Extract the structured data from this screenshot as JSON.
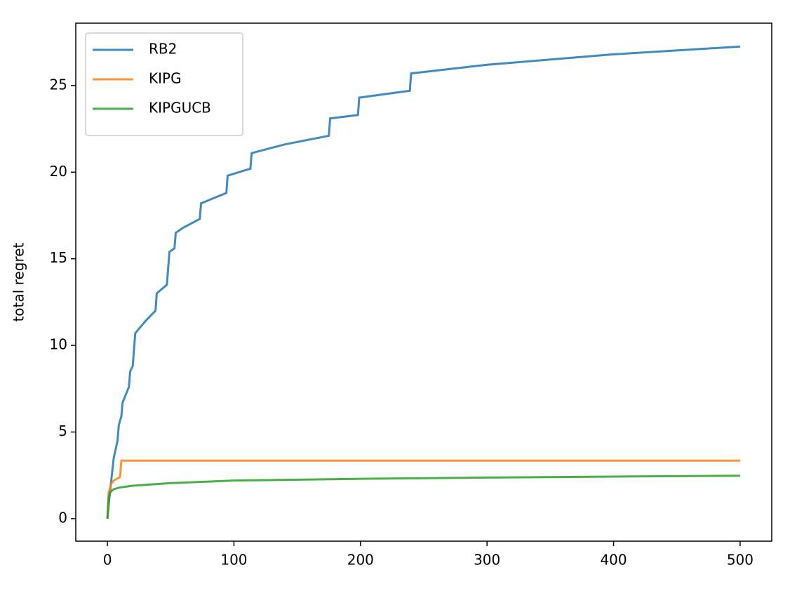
{
  "chart_data": {
    "type": "line",
    "y_label": "total regret",
    "xlim": [
      -25,
      525
    ],
    "ylim": [
      -1.3,
      28.6
    ],
    "xticks": [
      0,
      100,
      200,
      300,
      400,
      500
    ],
    "yticks": [
      0,
      5,
      10,
      15,
      20,
      25
    ],
    "legend": "upper left",
    "series": [
      {
        "name": "RB2",
        "color": "#1f77b4",
        "x": [
          0,
          2,
          5,
          8,
          9,
          11,
          12,
          17,
          18,
          20,
          22,
          30,
          38,
          39,
          47,
          49,
          53,
          54,
          60,
          73,
          74,
          94,
          95,
          113,
          114,
          140,
          175,
          176,
          198,
          199,
          239,
          240,
          300,
          400,
          500
        ],
        "values": [
          0,
          1.5,
          3.5,
          4.5,
          5.4,
          5.9,
          6.7,
          7.6,
          8.5,
          8.8,
          10.7,
          11.4,
          12.0,
          13.0,
          13.5,
          15.4,
          15.6,
          16.5,
          16.8,
          17.3,
          18.2,
          18.8,
          19.8,
          20.2,
          21.1,
          21.6,
          22.1,
          23.1,
          23.3,
          24.3,
          24.7,
          25.7,
          26.2,
          26.8,
          27.25
        ]
      },
      {
        "name": "KIPG",
        "color": "#ff7f0e",
        "x": [
          0,
          1,
          3,
          5,
          10,
          11,
          500
        ],
        "values": [
          0,
          1.5,
          2.0,
          2.2,
          2.4,
          3.35,
          3.35
        ]
      },
      {
        "name": "KIPGUCB",
        "color": "#2ca02c",
        "x": [
          0,
          1,
          2,
          5,
          10,
          20,
          50,
          100,
          200,
          300,
          400,
          500
        ],
        "values": [
          0,
          1.2,
          1.5,
          1.7,
          1.8,
          1.9,
          2.05,
          2.2,
          2.3,
          2.37,
          2.43,
          2.48
        ]
      }
    ]
  }
}
